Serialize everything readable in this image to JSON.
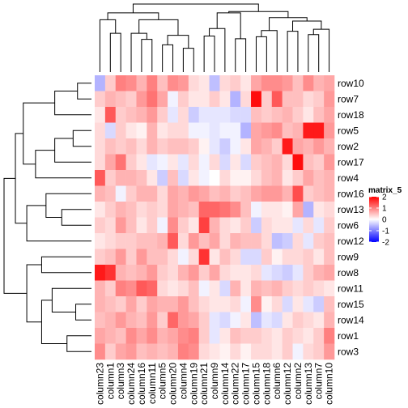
{
  "chart_data": {
    "type": "heatmap",
    "title": "",
    "legend": {
      "title": "matrix_5",
      "ticks": [
        2,
        1,
        0,
        -1,
        -2
      ],
      "colors": {
        "low": "#0000ff",
        "mid": "#ffffff",
        "high": "#ff0000"
      },
      "range": [
        -2,
        2
      ],
      "placement": "right"
    },
    "rows": [
      "row10",
      "row7",
      "row18",
      "row5",
      "row2",
      "row17",
      "row4",
      "row16",
      "row13",
      "row6",
      "row12",
      "row9",
      "row8",
      "row11",
      "row15",
      "row14",
      "row1",
      "row3"
    ],
    "columns": [
      "column23",
      "column1",
      "column3",
      "column24",
      "column16",
      "column11",
      "column5",
      "column20",
      "column4",
      "column19",
      "column21",
      "column9",
      "column14",
      "column22",
      "column17",
      "column15",
      "column18",
      "column6",
      "column12",
      "column2",
      "column13",
      "column7",
      "column10"
    ],
    "values": [
      [
        -0.6,
        0.4,
        1.0,
        0.9,
        0.6,
        1.0,
        0.5,
        0.9,
        0.8,
        0.3,
        0.2,
        -0.5,
        0.3,
        0.4,
        0.2,
        0.7,
        0.9,
        0.9,
        0.8,
        0.5,
        0.9,
        0.6,
        0.7
      ],
      [
        0.4,
        0.6,
        0.5,
        0.4,
        0.8,
        1.1,
        0.7,
        -0.1,
        0.4,
        0.2,
        0.2,
        0.4,
        0.2,
        -0.6,
        0.3,
        1.9,
        0.4,
        1.3,
        0.5,
        0.5,
        0.3,
        0.4,
        0.8
      ],
      [
        0.2,
        1.3,
        0.4,
        0.5,
        0.6,
        0.8,
        0.4,
        -0.2,
        0.3,
        -0.4,
        -0.2,
        -0.2,
        -0.2,
        -0.3,
        -0.3,
        0.5,
        0.4,
        0.5,
        0.6,
        0.4,
        0.2,
        0.5,
        0.7
      ],
      [
        0.3,
        -0.3,
        0.4,
        0.2,
        0.1,
        0.6,
        0.2,
        0.3,
        0.3,
        -0.1,
        -0.1,
        -0.2,
        -0.1,
        -0.1,
        -0.6,
        0.7,
        0.8,
        0.9,
        0.5,
        0.6,
        1.8,
        1.8,
        0.8
      ],
      [
        0.3,
        0.5,
        0.4,
        0.5,
        0.3,
        0.6,
        0.4,
        0.5,
        0.5,
        0.4,
        0.1,
        -0.2,
        -0.4,
        -0.1,
        0.2,
        0.7,
        0.6,
        0.4,
        1.8,
        0.7,
        0.6,
        0.8,
        0.6
      ],
      [
        0.3,
        0.7,
        1.1,
        0.4,
        0.2,
        -0.2,
        -0.1,
        0.2,
        -0.2,
        0.3,
        -0.1,
        0.3,
        -0.3,
        0.2,
        -0.3,
        0.4,
        0.5,
        0.6,
        0.3,
        1.9,
        0.5,
        0.4,
        0.8
      ],
      [
        1.3,
        0.4,
        0.6,
        0.6,
        0.5,
        0.2,
        -0.4,
        0.5,
        -0.3,
        0.2,
        -0.1,
        0.0,
        0.3,
        0.1,
        0.1,
        0.3,
        0.5,
        0.6,
        0.2,
        0.4,
        0.7,
        0.5,
        0.6
      ],
      [
        0.6,
        0.5,
        -0.1,
        0.4,
        0.6,
        0.6,
        0.3,
        0.7,
        0.6,
        0.8,
        0.7,
        0.5,
        0.6,
        0.4,
        0.5,
        0.7,
        0.8,
        0.8,
        0.6,
        1.4,
        0.4,
        0.5,
        0.6
      ],
      [
        0.2,
        0.4,
        0.6,
        0.5,
        0.3,
        0.4,
        0.3,
        0.7,
        0.6,
        0.5,
        1.2,
        1.2,
        1.1,
        0.9,
        0.5,
        -0.1,
        0.2,
        0.2,
        0.1,
        0.7,
        -0.6,
        0.2,
        0.3
      ],
      [
        0.4,
        0.3,
        0.8,
        0.5,
        0.2,
        0.4,
        -0.1,
        0.9,
        0.4,
        0.2,
        1.5,
        0.6,
        0.3,
        0.2,
        0.4,
        -0.4,
        0.3,
        0.2,
        0.2,
        -0.2,
        0.3,
        -0.2,
        0.4
      ],
      [
        0.2,
        0.3,
        0.4,
        0.4,
        0.5,
        0.5,
        0.6,
        1.3,
        0.3,
        0.8,
        0.5,
        0.7,
        0.3,
        0.6,
        0.5,
        0.5,
        0.3,
        -0.5,
        -0.4,
        0.3,
        -0.2,
        0.4,
        0.5
      ],
      [
        0.4,
        0.5,
        0.8,
        0.4,
        0.8,
        0.5,
        0.5,
        0.3,
        -0.1,
        0.3,
        1.6,
        0.2,
        0.5,
        0.3,
        -0.3,
        -0.3,
        0.4,
        0.1,
        0.3,
        0.3,
        0.4,
        0.2,
        0.5
      ],
      [
        1.8,
        1.6,
        0.6,
        0.5,
        0.6,
        0.8,
        0.4,
        0.3,
        0.6,
        0.8,
        0.4,
        0.7,
        0.3,
        0.2,
        0.2,
        0.3,
        -0.2,
        -0.3,
        -0.4,
        -0.2,
        0.4,
        0.6,
        0.7
      ],
      [
        0.6,
        0.4,
        1.0,
        0.9,
        1.3,
        1.2,
        0.3,
        0.2,
        0.3,
        0.5,
        -0.1,
        0.2,
        -0.3,
        0.6,
        0.2,
        0.6,
        0.5,
        0.6,
        0.4,
        0.3,
        0.4,
        0.3,
        0.2
      ],
      [
        0.6,
        0.5,
        0.4,
        0.7,
        0.4,
        0.7,
        0.6,
        0.6,
        0.8,
        0.5,
        0.3,
        0.2,
        0.2,
        0.3,
        -0.1,
        0.9,
        0.1,
        0.3,
        -0.3,
        0.2,
        -0.2,
        -0.4,
        0.5
      ],
      [
        0.5,
        0.6,
        0.8,
        0.6,
        0.5,
        0.8,
        0.4,
        1.2,
        0.8,
        0.7,
        0.4,
        -0.2,
        -0.3,
        -0.1,
        0.2,
        -0.5,
        -0.2,
        -0.3,
        0.2,
        0.4,
        0.3,
        0.2,
        0.6
      ],
      [
        0.7,
        0.6,
        0.5,
        0.9,
        0.7,
        0.9,
        0.6,
        0.7,
        0.9,
        1.0,
        0.4,
        -0.2,
        0.2,
        0.5,
        0.4,
        0.4,
        0.3,
        0.2,
        0.4,
        0.3,
        0.2,
        0.4,
        1.0
      ],
      [
        0.9,
        0.4,
        0.7,
        0.8,
        0.5,
        0.6,
        0.5,
        0.6,
        1.0,
        0.9,
        0.3,
        0.2,
        0.1,
        0.3,
        0.1,
        0.3,
        0.3,
        0.2,
        0.4,
        -0.1,
        0.3,
        0.4,
        0.8
      ]
    ]
  }
}
